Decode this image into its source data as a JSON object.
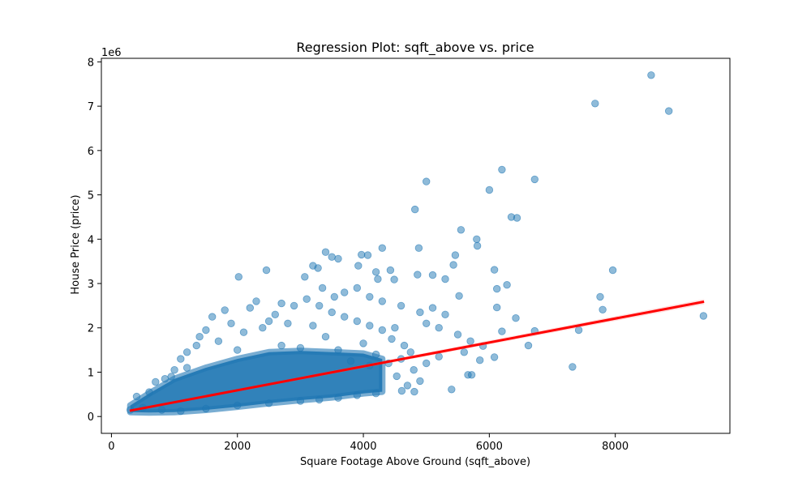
{
  "chart_data": {
    "type": "scatter",
    "title": "Regression Plot: sqft_above vs. price",
    "xlabel": "Square Footage Above Ground (sqft_above)",
    "ylabel": "House Price (price)",
    "y_offset_label": "1e6",
    "xlim": [
      -160,
      9820
    ],
    "ylim": [
      -380000,
      8080000
    ],
    "x_ticks": [
      0,
      2000,
      4000,
      6000,
      8000
    ],
    "x_tick_labels": [
      "0",
      "2000",
      "4000",
      "6000",
      "8000"
    ],
    "y_ticks": [
      0,
      1000000,
      2000000,
      3000000,
      4000000,
      5000000,
      6000000,
      7000000,
      8000000
    ],
    "y_tick_labels": [
      "0",
      "1",
      "2",
      "3",
      "4",
      "5",
      "6",
      "7",
      "8"
    ],
    "grid": false,
    "series": [
      {
        "kind": "points",
        "color": "#1f77b4",
        "alpha": 0.5,
        "points": [
          [
            8570,
            7700000
          ],
          [
            7680,
            7060000
          ],
          [
            8850,
            6890000
          ],
          [
            6200,
            5570000
          ],
          [
            6720,
            5350000
          ],
          [
            5000,
            5300000
          ],
          [
            6000,
            5110000
          ],
          [
            4820,
            4670000
          ],
          [
            6350,
            4500000
          ],
          [
            6440,
            4480000
          ],
          [
            5550,
            4210000
          ],
          [
            5800,
            4000000
          ],
          [
            5810,
            3850000
          ],
          [
            4880,
            3800000
          ],
          [
            4300,
            3800000
          ],
          [
            3400,
            3710000
          ],
          [
            3500,
            3600000
          ],
          [
            3600,
            3560000
          ],
          [
            3970,
            3650000
          ],
          [
            4070,
            3640000
          ],
          [
            5460,
            3640000
          ],
          [
            5430,
            3420000
          ],
          [
            3200,
            3400000
          ],
          [
            3280,
            3350000
          ],
          [
            2460,
            3300000
          ],
          [
            3920,
            3400000
          ],
          [
            4200,
            3260000
          ],
          [
            4430,
            3300000
          ],
          [
            6080,
            3310000
          ],
          [
            7960,
            3300000
          ],
          [
            2020,
            3150000
          ],
          [
            3070,
            3150000
          ],
          [
            4230,
            3100000
          ],
          [
            4490,
            3090000
          ],
          [
            4860,
            3200000
          ],
          [
            5100,
            3190000
          ],
          [
            5300,
            3100000
          ],
          [
            6280,
            2970000
          ],
          [
            6120,
            2880000
          ],
          [
            5520,
            2720000
          ],
          [
            7760,
            2700000
          ],
          [
            7800,
            2410000
          ],
          [
            6120,
            2460000
          ],
          [
            9400,
            2270000
          ],
          [
            6420,
            2220000
          ],
          [
            7420,
            1950000
          ],
          [
            6720,
            1930000
          ],
          [
            6200,
            1920000
          ],
          [
            6620,
            1600000
          ],
          [
            7320,
            1120000
          ],
          [
            6080,
            1340000
          ],
          [
            5900,
            1590000
          ],
          [
            5850,
            1270000
          ],
          [
            5660,
            940000
          ],
          [
            5720,
            940000
          ],
          [
            5400,
            610000
          ],
          [
            4810,
            560000
          ],
          [
            4610,
            580000
          ],
          [
            4530,
            910000
          ],
          [
            3350,
            2900000
          ],
          [
            3540,
            2700000
          ],
          [
            3700,
            2800000
          ],
          [
            3900,
            2900000
          ],
          [
            4100,
            2700000
          ],
          [
            4300,
            2600000
          ],
          [
            4600,
            2500000
          ],
          [
            4900,
            2350000
          ],
          [
            5100,
            2450000
          ],
          [
            5300,
            2300000
          ],
          [
            5200,
            2000000
          ],
          [
            5000,
            2100000
          ],
          [
            5500,
            1850000
          ],
          [
            5700,
            1700000
          ],
          [
            5600,
            1450000
          ],
          [
            5200,
            1350000
          ],
          [
            5000,
            1200000
          ],
          [
            4800,
            1050000
          ],
          [
            4900,
            800000
          ],
          [
            4700,
            700000
          ],
          [
            2300,
            2600000
          ],
          [
            2200,
            2450000
          ],
          [
            1800,
            2400000
          ],
          [
            1600,
            2250000
          ],
          [
            1900,
            2100000
          ],
          [
            1500,
            1950000
          ],
          [
            1400,
            1800000
          ],
          [
            1350,
            1600000
          ],
          [
            1200,
            1450000
          ],
          [
            1100,
            1300000
          ],
          [
            700,
            780000
          ],
          [
            950,
            900000
          ],
          [
            850,
            850000
          ],
          [
            1200,
            1100000
          ],
          [
            2700,
            2550000
          ],
          [
            2900,
            2500000
          ],
          [
            3100,
            2650000
          ],
          [
            3300,
            2500000
          ],
          [
            2600,
            2300000
          ],
          [
            2500,
            2150000
          ],
          [
            3500,
            2350000
          ],
          [
            3700,
            2250000
          ],
          [
            3900,
            2150000
          ],
          [
            4100,
            2050000
          ],
          [
            4300,
            1950000
          ],
          [
            4500,
            2000000
          ],
          [
            4450,
            1750000
          ],
          [
            4650,
            1600000
          ],
          [
            4750,
            1450000
          ],
          [
            4600,
            1300000
          ],
          [
            4400,
            1200000
          ],
          [
            1000,
            1050000
          ],
          [
            600,
            550000
          ],
          [
            400,
            450000
          ],
          [
            300,
            150000
          ],
          [
            500,
            200000
          ],
          [
            800,
            150000
          ],
          [
            1100,
            120000
          ],
          [
            1500,
            180000
          ],
          [
            2000,
            250000
          ],
          [
            2500,
            300000
          ],
          [
            3000,
            350000
          ],
          [
            3300,
            380000
          ],
          [
            3600,
            420000
          ],
          [
            3900,
            480000
          ],
          [
            4200,
            520000
          ],
          [
            1700,
            1700000
          ],
          [
            2100,
            1900000
          ],
          [
            2400,
            2000000
          ],
          [
            2800,
            2100000
          ],
          [
            3200,
            2050000
          ],
          [
            3400,
            1800000
          ],
          [
            2000,
            1500000
          ],
          [
            2700,
            1600000
          ],
          [
            3000,
            1550000
          ],
          [
            3600,
            1500000
          ],
          [
            4000,
            1650000
          ],
          [
            4200,
            1400000
          ],
          [
            3800,
            1250000
          ],
          [
            4100,
            1150000
          ]
        ]
      },
      {
        "kind": "dense_band",
        "color": "#1f77b4",
        "alpha": 0.5,
        "upper": [
          [
            300,
            250000
          ],
          [
            600,
            520000
          ],
          [
            1000,
            850000
          ],
          [
            1500,
            1100000
          ],
          [
            2000,
            1300000
          ],
          [
            2500,
            1450000
          ],
          [
            3000,
            1480000
          ],
          [
            3500,
            1450000
          ],
          [
            4000,
            1420000
          ],
          [
            4300,
            1300000
          ]
        ],
        "lower": [
          [
            4300,
            560000
          ],
          [
            4000,
            520000
          ],
          [
            3500,
            430000
          ],
          [
            3000,
            370000
          ],
          [
            2500,
            300000
          ],
          [
            2000,
            220000
          ],
          [
            1500,
            150000
          ],
          [
            1000,
            100000
          ],
          [
            600,
            90000
          ],
          [
            300,
            100000
          ]
        ]
      },
      {
        "kind": "regression_line",
        "color": "#ff0000",
        "ci_color": "#ff8080",
        "points": [
          [
            290,
            130000
          ],
          [
            9410,
            2590000
          ]
        ]
      }
    ]
  }
}
